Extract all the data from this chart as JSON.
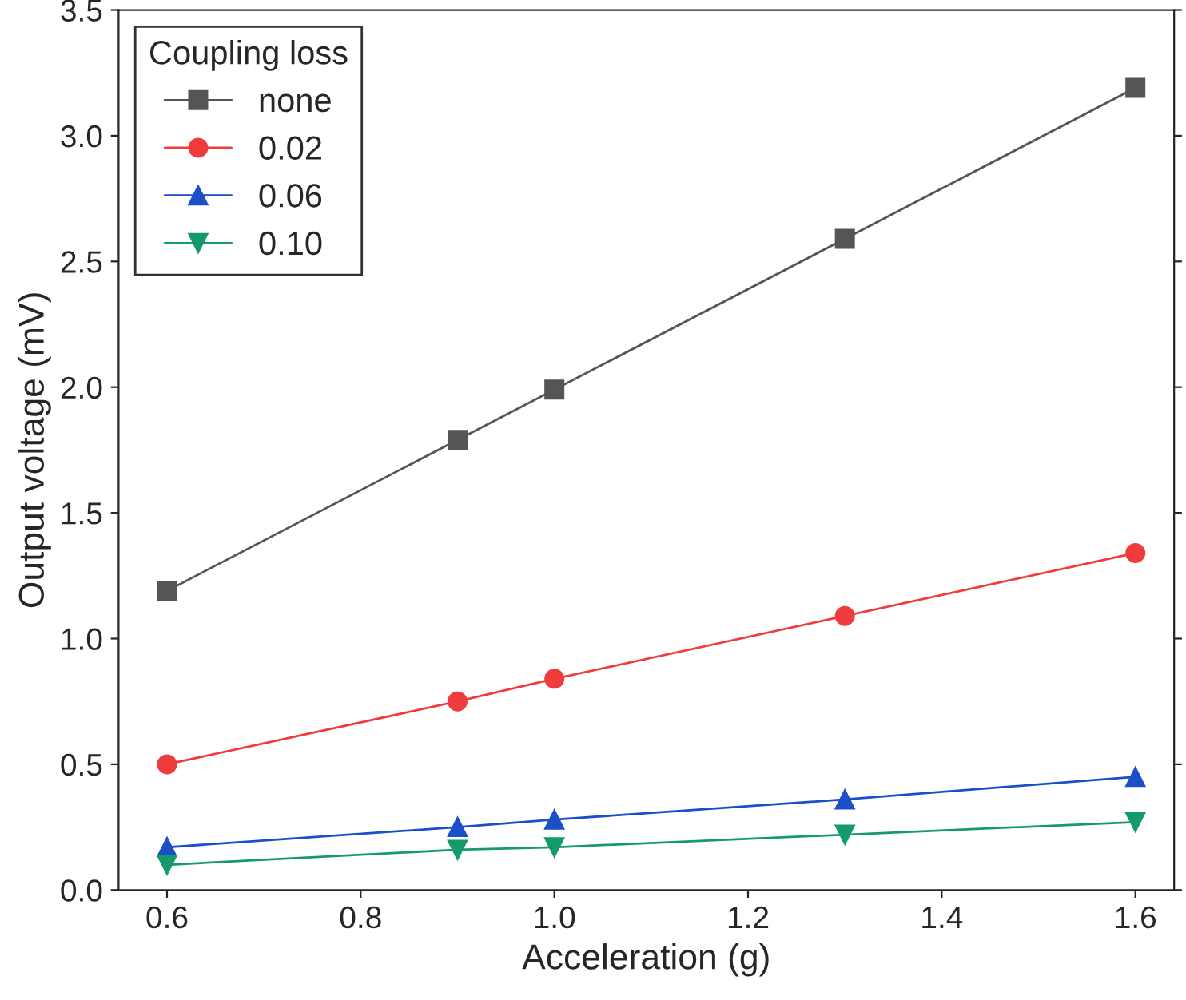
{
  "chart_data": {
    "type": "line",
    "xlabel": "Acceleration (g)",
    "ylabel": "Output voltage (mV)",
    "legend_title": "Coupling loss",
    "legend": "top left",
    "grid": false,
    "x": [
      0.6,
      0.9,
      1.0,
      1.3,
      1.6
    ],
    "series": [
      {
        "name": "none",
        "color": "#555555",
        "marker": "square",
        "values": [
          1.19,
          1.79,
          1.99,
          2.59,
          3.19
        ]
      },
      {
        "name": "0.02",
        "color": "#f03c3c",
        "marker": "circle",
        "values": [
          0.5,
          0.75,
          0.84,
          1.09,
          1.34
        ]
      },
      {
        "name": "0.06",
        "color": "#1a4fc8",
        "marker": "triangle",
        "values": [
          0.17,
          0.25,
          0.28,
          0.36,
          0.45
        ]
      },
      {
        "name": "0.10",
        "color": "#159a6a",
        "marker": "triangle_down",
        "values": [
          0.1,
          0.16,
          0.17,
          0.22,
          0.27
        ]
      }
    ],
    "xlim": [
      0.55,
      1.64
    ],
    "xticks": [
      {
        "value": 0.6,
        "label": "0.6"
      },
      {
        "value": 0.8,
        "label": "0.8"
      },
      {
        "value": 1.0,
        "label": "1.0"
      },
      {
        "value": 1.2,
        "label": "1.2"
      },
      {
        "value": 1.4,
        "label": "1.4"
      },
      {
        "value": 1.6,
        "label": "1.6"
      }
    ],
    "ylim": [
      0,
      3.5
    ],
    "yticks": [
      {
        "value": 0,
        "label": "0.0"
      },
      {
        "value": 0.5,
        "label": "0.5"
      },
      {
        "value": 1.0,
        "label": "1.0"
      },
      {
        "value": 1.5,
        "label": "1.5"
      },
      {
        "value": 2.0,
        "label": "2.0"
      },
      {
        "value": 2.5,
        "label": "2.5"
      },
      {
        "value": 3.0,
        "label": "3.0"
      },
      {
        "value": 3.5,
        "label": "3.5"
      }
    ]
  }
}
